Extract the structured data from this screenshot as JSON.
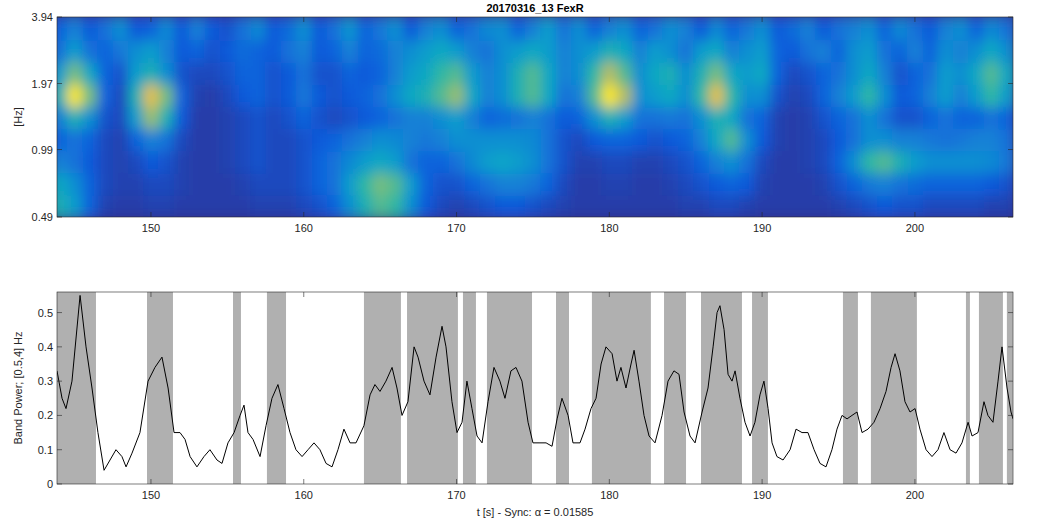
{
  "chart_data": [
    {
      "type": "heatmap",
      "title": "20170316_13 FexR",
      "ylabel": "[Hz]",
      "log": "y",
      "xlim": [
        143.85,
        206.42
      ],
      "ylim": [
        0.49,
        3.94
      ],
      "xticks": [
        150,
        160,
        170,
        180,
        190,
        200
      ],
      "yticks": [
        0.49,
        0.99,
        1.97,
        3.94
      ],
      "zlim": [
        0,
        1
      ],
      "x": [
        144,
        145,
        146,
        147,
        148,
        149,
        150,
        151,
        152,
        153,
        154,
        155,
        156,
        157,
        158,
        159,
        160,
        161,
        162,
        163,
        164,
        165,
        166,
        167,
        168,
        169,
        170,
        171,
        172,
        173,
        174,
        175,
        176,
        177,
        178,
        179,
        180,
        181,
        182,
        183,
        184,
        185,
        186,
        187,
        188,
        189,
        190,
        191,
        192,
        193,
        194,
        195,
        196,
        197,
        198,
        199,
        200,
        201,
        202,
        203,
        204,
        205,
        206
      ],
      "y": [
        0.55,
        0.69,
        0.87,
        1.1,
        1.38,
        1.74,
        2.19,
        2.76,
        3.48
      ],
      "z": [
        [
          0.45,
          0.35,
          0.15,
          0.06,
          0.05,
          0.05,
          0.06,
          0.06,
          0.05,
          0.05,
          0.05,
          0.05,
          0.05,
          0.06,
          0.06,
          0.06,
          0.08,
          0.1,
          0.15,
          0.3,
          0.45,
          0.55,
          0.5,
          0.3,
          0.12,
          0.08,
          0.06,
          0.08,
          0.1,
          0.12,
          0.12,
          0.1,
          0.08,
          0.06,
          0.05,
          0.05,
          0.05,
          0.05,
          0.05,
          0.05,
          0.05,
          0.06,
          0.06,
          0.08,
          0.08,
          0.06,
          0.05,
          0.05,
          0.05,
          0.05,
          0.05,
          0.06,
          0.08,
          0.1,
          0.12,
          0.1,
          0.1,
          0.08,
          0.08,
          0.08,
          0.08,
          0.06,
          0.06
        ],
        [
          0.4,
          0.3,
          0.15,
          0.08,
          0.06,
          0.06,
          0.08,
          0.08,
          0.06,
          0.05,
          0.05,
          0.05,
          0.06,
          0.08,
          0.08,
          0.08,
          0.1,
          0.15,
          0.2,
          0.35,
          0.5,
          0.6,
          0.55,
          0.35,
          0.15,
          0.1,
          0.1,
          0.15,
          0.2,
          0.25,
          0.25,
          0.22,
          0.15,
          0.08,
          0.05,
          0.05,
          0.06,
          0.06,
          0.05,
          0.05,
          0.06,
          0.08,
          0.1,
          0.12,
          0.15,
          0.12,
          0.06,
          0.05,
          0.05,
          0.05,
          0.06,
          0.1,
          0.15,
          0.22,
          0.25,
          0.2,
          0.18,
          0.15,
          0.15,
          0.15,
          0.15,
          0.12,
          0.1
        ],
        [
          0.25,
          0.2,
          0.12,
          0.08,
          0.06,
          0.08,
          0.12,
          0.1,
          0.06,
          0.05,
          0.05,
          0.06,
          0.08,
          0.1,
          0.08,
          0.08,
          0.1,
          0.15,
          0.2,
          0.28,
          0.35,
          0.4,
          0.35,
          0.2,
          0.15,
          0.15,
          0.2,
          0.28,
          0.35,
          0.38,
          0.35,
          0.3,
          0.2,
          0.1,
          0.06,
          0.06,
          0.08,
          0.08,
          0.06,
          0.06,
          0.08,
          0.1,
          0.15,
          0.25,
          0.3,
          0.2,
          0.08,
          0.05,
          0.05,
          0.06,
          0.08,
          0.15,
          0.3,
          0.5,
          0.55,
          0.45,
          0.35,
          0.3,
          0.3,
          0.3,
          0.3,
          0.28,
          0.22
        ],
        [
          0.15,
          0.2,
          0.15,
          0.08,
          0.06,
          0.15,
          0.25,
          0.2,
          0.08,
          0.05,
          0.05,
          0.06,
          0.08,
          0.1,
          0.08,
          0.08,
          0.1,
          0.12,
          0.15,
          0.2,
          0.25,
          0.3,
          0.28,
          0.25,
          0.22,
          0.25,
          0.3,
          0.3,
          0.3,
          0.3,
          0.3,
          0.28,
          0.2,
          0.1,
          0.08,
          0.12,
          0.15,
          0.15,
          0.12,
          0.1,
          0.12,
          0.15,
          0.25,
          0.4,
          0.55,
          0.3,
          0.12,
          0.06,
          0.05,
          0.06,
          0.08,
          0.12,
          0.2,
          0.3,
          0.3,
          0.25,
          0.25,
          0.22,
          0.2,
          0.22,
          0.25,
          0.25,
          0.2
        ],
        [
          0.25,
          0.45,
          0.3,
          0.1,
          0.08,
          0.35,
          0.65,
          0.45,
          0.12,
          0.05,
          0.05,
          0.06,
          0.08,
          0.1,
          0.08,
          0.1,
          0.15,
          0.1,
          0.08,
          0.1,
          0.12,
          0.15,
          0.2,
          0.25,
          0.25,
          0.3,
          0.35,
          0.25,
          0.15,
          0.18,
          0.2,
          0.25,
          0.2,
          0.12,
          0.15,
          0.3,
          0.45,
          0.35,
          0.2,
          0.2,
          0.22,
          0.2,
          0.3,
          0.45,
          0.4,
          0.2,
          0.15,
          0.06,
          0.05,
          0.06,
          0.1,
          0.15,
          0.2,
          0.3,
          0.2,
          0.1,
          0.1,
          0.15,
          0.2,
          0.15,
          0.15,
          0.2,
          0.15
        ],
        [
          0.45,
          0.95,
          0.6,
          0.15,
          0.08,
          0.45,
          0.8,
          0.6,
          0.15,
          0.06,
          0.05,
          0.08,
          0.12,
          0.15,
          0.1,
          0.12,
          0.22,
          0.12,
          0.1,
          0.12,
          0.15,
          0.2,
          0.3,
          0.4,
          0.45,
          0.55,
          0.65,
          0.4,
          0.25,
          0.3,
          0.45,
          0.55,
          0.4,
          0.2,
          0.25,
          0.55,
          0.95,
          0.7,
          0.3,
          0.35,
          0.4,
          0.3,
          0.5,
          0.8,
          0.5,
          0.3,
          0.3,
          0.1,
          0.06,
          0.08,
          0.15,
          0.25,
          0.35,
          0.5,
          0.3,
          0.12,
          0.15,
          0.25,
          0.35,
          0.25,
          0.35,
          0.5,
          0.35
        ],
        [
          0.35,
          0.6,
          0.4,
          0.15,
          0.1,
          0.35,
          0.45,
          0.3,
          0.1,
          0.08,
          0.08,
          0.1,
          0.15,
          0.15,
          0.1,
          0.12,
          0.2,
          0.1,
          0.1,
          0.15,
          0.12,
          0.15,
          0.25,
          0.35,
          0.4,
          0.5,
          0.55,
          0.35,
          0.25,
          0.3,
          0.45,
          0.55,
          0.4,
          0.25,
          0.3,
          0.5,
          0.7,
          0.55,
          0.3,
          0.4,
          0.45,
          0.3,
          0.45,
          0.6,
          0.4,
          0.35,
          0.4,
          0.15,
          0.08,
          0.1,
          0.15,
          0.2,
          0.3,
          0.4,
          0.25,
          0.1,
          0.15,
          0.2,
          0.35,
          0.3,
          0.4,
          0.55,
          0.4
        ],
        [
          0.2,
          0.35,
          0.2,
          0.15,
          0.22,
          0.3,
          0.35,
          0.25,
          0.12,
          0.15,
          0.1,
          0.12,
          0.18,
          0.15,
          0.12,
          0.2,
          0.25,
          0.12,
          0.15,
          0.25,
          0.15,
          0.18,
          0.25,
          0.3,
          0.35,
          0.4,
          0.35,
          0.25,
          0.2,
          0.3,
          0.35,
          0.4,
          0.35,
          0.25,
          0.3,
          0.35,
          0.45,
          0.4,
          0.25,
          0.35,
          0.3,
          0.2,
          0.35,
          0.4,
          0.25,
          0.3,
          0.35,
          0.15,
          0.12,
          0.2,
          0.25,
          0.15,
          0.3,
          0.35,
          0.2,
          0.15,
          0.25,
          0.15,
          0.3,
          0.25,
          0.3,
          0.4,
          0.3
        ],
        [
          0.15,
          0.25,
          0.12,
          0.2,
          0.3,
          0.12,
          0.15,
          0.28,
          0.12,
          0.25,
          0.12,
          0.1,
          0.2,
          0.28,
          0.12,
          0.18,
          0.3,
          0.12,
          0.2,
          0.32,
          0.15,
          0.22,
          0.3,
          0.12,
          0.25,
          0.3,
          0.15,
          0.2,
          0.28,
          0.3,
          0.15,
          0.25,
          0.35,
          0.2,
          0.3,
          0.15,
          0.25,
          0.3,
          0.15,
          0.2,
          0.3,
          0.25,
          0.12,
          0.28,
          0.15,
          0.22,
          0.3,
          0.12,
          0.18,
          0.25,
          0.12,
          0.2,
          0.25,
          0.3,
          0.15,
          0.28,
          0.2,
          0.12,
          0.25,
          0.3,
          0.15,
          0.28,
          0.2
        ]
      ]
    },
    {
      "type": "line",
      "xlabel": "t [s] - Sync: α = 0.01585",
      "ylabel": "Band Power; [0.5,4] Hz",
      "xlim": [
        143.85,
        206.42
      ],
      "ylim": [
        0,
        0.56
      ],
      "xticks": [
        150,
        160,
        170,
        180,
        190,
        200
      ],
      "yticks": [
        0,
        0.1,
        0.2,
        0.3,
        0.4,
        0.5
      ],
      "x": [
        143.85,
        144.18,
        144.44,
        144.83,
        145.36,
        145.75,
        146.14,
        146.53,
        146.93,
        147.32,
        147.71,
        148.1,
        148.37,
        148.76,
        149.28,
        149.81,
        150.26,
        150.72,
        151.12,
        151.51,
        151.9,
        152.23,
        152.56,
        153.01,
        153.47,
        153.86,
        154.32,
        154.65,
        155.04,
        155.44,
        155.83,
        156.09,
        156.35,
        156.68,
        157.14,
        157.53,
        157.92,
        158.31,
        158.71,
        159.1,
        159.49,
        159.89,
        160.28,
        160.67,
        161.06,
        161.46,
        161.85,
        162.24,
        162.63,
        163.03,
        163.42,
        163.94,
        164.34,
        164.66,
        164.99,
        165.38,
        165.78,
        166.1,
        166.43,
        166.82,
        167.22,
        167.48,
        167.87,
        168.26,
        168.66,
        169.05,
        169.31,
        169.7,
        170.03,
        170.36,
        170.68,
        171.01,
        171.34,
        171.67,
        172.06,
        172.45,
        172.84,
        173.17,
        173.56,
        173.89,
        174.28,
        174.68,
        175.0,
        175.46,
        175.86,
        176.25,
        176.58,
        176.9,
        177.3,
        177.62,
        178.08,
        178.41,
        178.8,
        179.13,
        179.46,
        179.78,
        180.18,
        180.5,
        180.76,
        181.09,
        181.42,
        181.62,
        181.94,
        182.27,
        182.6,
        182.99,
        183.45,
        183.84,
        184.23,
        184.56,
        184.89,
        185.28,
        185.61,
        186.07,
        186.46,
        186.79,
        187.05,
        187.24,
        187.51,
        187.77,
        188.03,
        188.23,
        188.55,
        188.88,
        189.21,
        189.53,
        189.86,
        190.12,
        190.39,
        190.65,
        190.97,
        191.37,
        191.83,
        192.22,
        192.61,
        193.0,
        193.4,
        193.79,
        194.18,
        194.57,
        194.9,
        195.23,
        195.56,
        195.88,
        196.21,
        196.54,
        196.93,
        197.32,
        197.72,
        198.11,
        198.44,
        198.7,
        199.02,
        199.35,
        199.68,
        200.01,
        200.33,
        200.73,
        201.12,
        201.51,
        201.9,
        202.3,
        202.69,
        203.08,
        203.48,
        203.74,
        204.13,
        204.52,
        204.78,
        205.11,
        205.44,
        205.7,
        206.03,
        206.29,
        206.42
      ],
      "series": [
        {
          "color": "#000000",
          "values": [
            0.33,
            0.25,
            0.22,
            0.3,
            0.55,
            0.4,
            0.28,
            0.15,
            0.04,
            0.07,
            0.1,
            0.08,
            0.05,
            0.09,
            0.15,
            0.3,
            0.34,
            0.37,
            0.28,
            0.15,
            0.15,
            0.13,
            0.08,
            0.05,
            0.08,
            0.1,
            0.07,
            0.06,
            0.12,
            0.15,
            0.2,
            0.23,
            0.15,
            0.13,
            0.08,
            0.17,
            0.25,
            0.29,
            0.22,
            0.15,
            0.1,
            0.08,
            0.1,
            0.12,
            0.1,
            0.06,
            0.05,
            0.1,
            0.16,
            0.12,
            0.12,
            0.17,
            0.26,
            0.29,
            0.27,
            0.3,
            0.34,
            0.28,
            0.2,
            0.24,
            0.4,
            0.37,
            0.3,
            0.26,
            0.37,
            0.46,
            0.4,
            0.24,
            0.15,
            0.18,
            0.3,
            0.22,
            0.14,
            0.12,
            0.24,
            0.34,
            0.3,
            0.25,
            0.33,
            0.34,
            0.3,
            0.18,
            0.12,
            0.12,
            0.12,
            0.11,
            0.19,
            0.25,
            0.2,
            0.12,
            0.12,
            0.16,
            0.22,
            0.25,
            0.35,
            0.4,
            0.38,
            0.3,
            0.34,
            0.28,
            0.35,
            0.39,
            0.3,
            0.2,
            0.14,
            0.12,
            0.2,
            0.3,
            0.33,
            0.32,
            0.21,
            0.14,
            0.12,
            0.21,
            0.28,
            0.4,
            0.5,
            0.52,
            0.45,
            0.32,
            0.3,
            0.33,
            0.25,
            0.18,
            0.14,
            0.18,
            0.26,
            0.3,
            0.22,
            0.12,
            0.08,
            0.07,
            0.1,
            0.16,
            0.15,
            0.15,
            0.1,
            0.06,
            0.05,
            0.1,
            0.16,
            0.2,
            0.19,
            0.2,
            0.21,
            0.15,
            0.16,
            0.18,
            0.22,
            0.27,
            0.34,
            0.38,
            0.33,
            0.24,
            0.21,
            0.22,
            0.16,
            0.1,
            0.08,
            0.1,
            0.15,
            0.1,
            0.09,
            0.12,
            0.18,
            0.14,
            0.15,
            0.24,
            0.2,
            0.18,
            0.3,
            0.4,
            0.28,
            0.21,
            0.19
          ]
        }
      ],
      "intervals": [
        [
          143.85,
          146.4
        ],
        [
          149.74,
          151.44
        ],
        [
          155.37,
          155.89
        ],
        [
          157.59,
          158.84
        ],
        [
          163.94,
          166.36
        ],
        [
          166.76,
          170.09
        ],
        [
          170.42,
          171.27
        ],
        [
          171.99,
          174.94
        ],
        [
          176.51,
          177.36
        ],
        [
          178.86,
          182.72
        ],
        [
          183.58,
          185.02
        ],
        [
          186.0,
          188.68
        ],
        [
          189.34,
          190.38
        ],
        [
          195.29,
          196.27
        ],
        [
          197.12,
          200.13
        ],
        [
          203.34,
          203.6
        ],
        [
          204.19,
          205.76
        ],
        [
          206.02,
          206.41
        ]
      ]
    }
  ]
}
